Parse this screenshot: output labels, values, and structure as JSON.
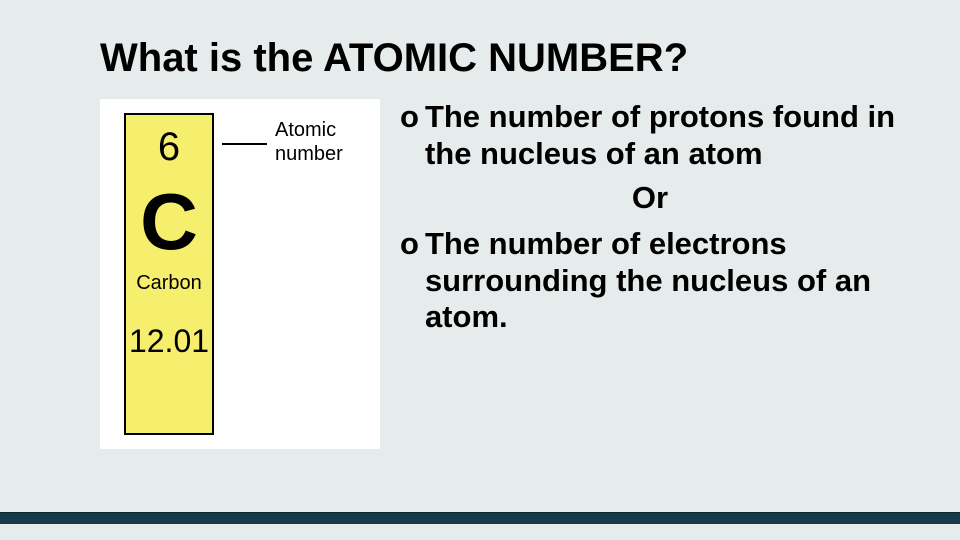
{
  "slide": {
    "title": "What is the ATOMIC NUMBER?",
    "background_color": "#e6ecec",
    "footer_bar_color": "#163a4a"
  },
  "element_tile": {
    "atomic_number": "6",
    "symbol": "C",
    "name": "Carbon",
    "atomic_mass": "12.01",
    "box_color": "#f6ef6e",
    "border_color": "#000000",
    "pointer_label_line1": "Atomic",
    "pointer_label_line2": "number"
  },
  "bullets": {
    "mark": "o",
    "item1": "The number of protons found in the nucleus of an atom",
    "or_text": "Or",
    "item2": "The number of electrons surrounding the nucleus of an atom."
  },
  "typography": {
    "title_fontsize": 40,
    "body_fontsize": 31,
    "font_family": "Comic Sans MS"
  }
}
